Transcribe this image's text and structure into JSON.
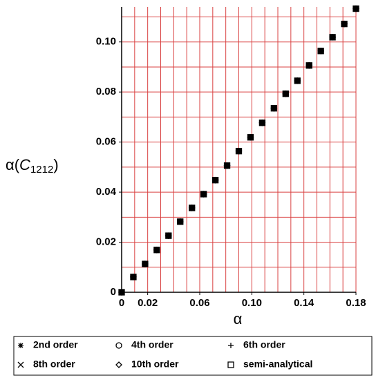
{
  "chart_data": {
    "type": "scatter",
    "xlabel": "α",
    "ylabel": {
      "lead": "α(",
      "symbol": "C",
      "sub": "1212",
      "close": ")"
    },
    "x": [
      0,
      0.009,
      0.018,
      0.027,
      0.036,
      0.045,
      0.054,
      0.063,
      0.072,
      0.081,
      0.09,
      0.099,
      0.108,
      0.117,
      0.126,
      0.135,
      0.144,
      0.153,
      0.162,
      0.171,
      0.18
    ],
    "series": [
      {
        "name": "2nd order",
        "marker": "star",
        "color": "#000000",
        "values": [
          0,
          0.0061,
          0.0113,
          0.0169,
          0.0226,
          0.0282,
          0.0337,
          0.0392,
          0.0448,
          0.0506,
          0.0564,
          0.0619,
          0.0677,
          0.0735,
          0.0793,
          0.0845,
          0.0906,
          0.0964,
          0.1019,
          0.1072,
          0.1133
        ]
      },
      {
        "name": "4th order",
        "marker": "circle",
        "color": "#000000",
        "values": [
          0,
          0.0061,
          0.0113,
          0.0169,
          0.0226,
          0.0282,
          0.0337,
          0.0392,
          0.0448,
          0.0506,
          0.0564,
          0.0619,
          0.0677,
          0.0735,
          0.0793,
          0.0845,
          0.0906,
          0.0964,
          0.1019,
          0.1072,
          0.1133
        ]
      },
      {
        "name": "6th order",
        "marker": "plus",
        "color": "#000000",
        "values": [
          0,
          0.0061,
          0.0113,
          0.0169,
          0.0226,
          0.0282,
          0.0337,
          0.0392,
          0.0448,
          0.0506,
          0.0564,
          0.0619,
          0.0677,
          0.0735,
          0.0793,
          0.0845,
          0.0906,
          0.0964,
          0.1019,
          0.1072,
          0.1133
        ]
      },
      {
        "name": "8th order",
        "marker": "cross",
        "color": "#000000",
        "values": [
          0,
          0.0061,
          0.0113,
          0.0169,
          0.0226,
          0.0282,
          0.0337,
          0.0392,
          0.0448,
          0.0506,
          0.0564,
          0.0619,
          0.0677,
          0.0735,
          0.0793,
          0.0845,
          0.0906,
          0.0964,
          0.1019,
          0.1072,
          0.1133
        ]
      },
      {
        "name": "10th order",
        "marker": "diamond",
        "color": "#000000",
        "values": [
          0,
          0.0061,
          0.0113,
          0.0169,
          0.0226,
          0.0282,
          0.0337,
          0.0392,
          0.0448,
          0.0506,
          0.0564,
          0.0619,
          0.0677,
          0.0735,
          0.0793,
          0.0845,
          0.0906,
          0.0964,
          0.1019,
          0.1072,
          0.1133
        ]
      },
      {
        "name": "semi-analytical",
        "marker": "square",
        "color": "#000000",
        "values": [
          0,
          0.0061,
          0.0113,
          0.0169,
          0.0226,
          0.0282,
          0.0337,
          0.0392,
          0.0448,
          0.0506,
          0.0564,
          0.0619,
          0.0677,
          0.0735,
          0.0793,
          0.0845,
          0.0906,
          0.0964,
          0.1019,
          0.1072,
          0.1133
        ]
      }
    ],
    "xlim": [
      0,
      0.18
    ],
    "ylim": [
      0,
      0.114
    ],
    "xticks": [
      0,
      0.02,
      0.06,
      {
        "value": 0.1,
        "label": "0.10"
      },
      0.14,
      0.18
    ],
    "yticks": [
      0,
      0.02,
      0.04,
      0.06,
      0.08,
      {
        "value": 0.1,
        "label": "0.10"
      }
    ],
    "xgrid": [
      0,
      0.01,
      0.02,
      0.03,
      0.04,
      0.05,
      0.06,
      0.07,
      0.08,
      0.09,
      0.1,
      0.11,
      0.12,
      0.13,
      0.14,
      0.15,
      0.16,
      0.17,
      0.18
    ],
    "ygrid": [
      0,
      0.01,
      0.02,
      0.03,
      0.04,
      0.05,
      0.06,
      0.07,
      0.08,
      0.09,
      0.1,
      0.11
    ],
    "grid": true,
    "grid_color": "#d94040",
    "legend": "bottom"
  }
}
